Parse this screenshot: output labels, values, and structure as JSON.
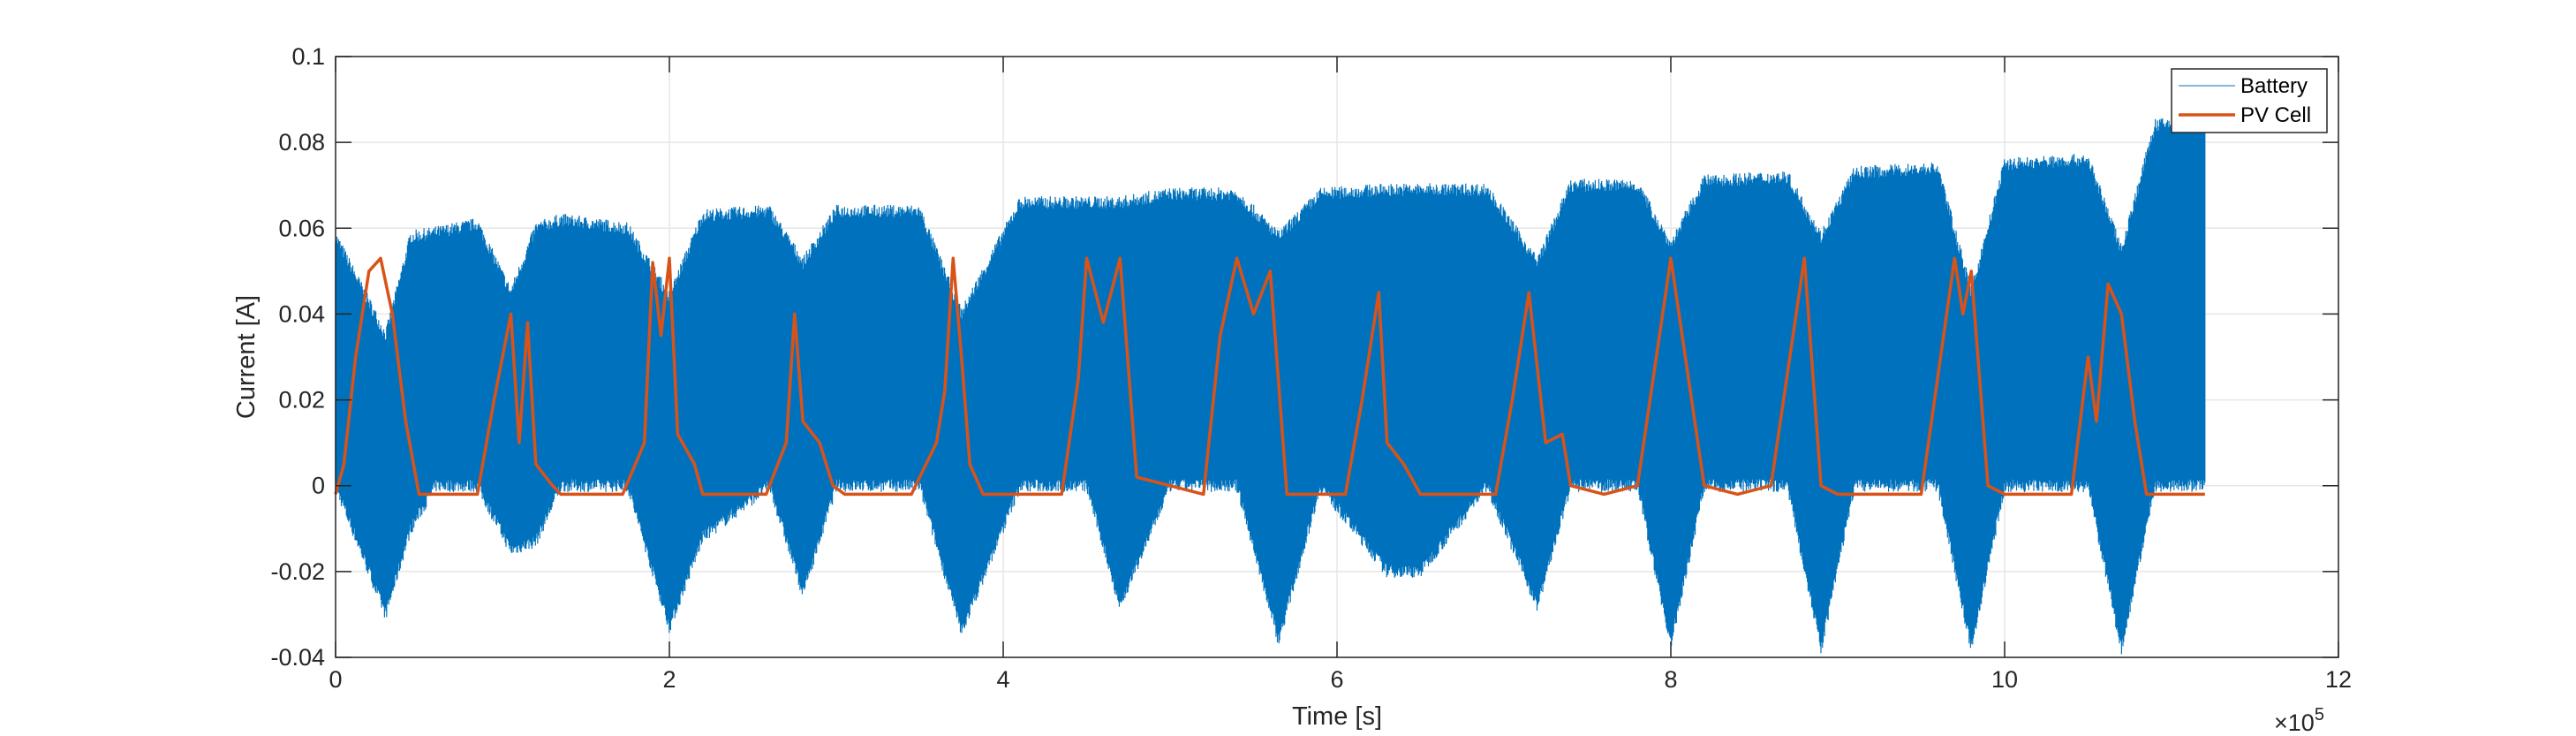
{
  "chart_data": {
    "type": "line",
    "title": "",
    "xlabel": "Time [s]",
    "ylabel": "Current [A]",
    "xlim": [
      0,
      12
    ],
    "ylim": [
      -0.04,
      0.1
    ],
    "x_multiplier_label": "×10",
    "x_multiplier_exponent": "5",
    "xticks": [
      0,
      2,
      4,
      6,
      8,
      10,
      12
    ],
    "xtick_labels": [
      "0",
      "2",
      "4",
      "6",
      "8",
      "10",
      "12"
    ],
    "yticks": [
      -0.04,
      -0.02,
      0,
      0.02,
      0.04,
      0.06,
      0.08,
      0.1
    ],
    "ytick_labels": [
      "-0.04",
      "-0.02",
      "0",
      "0.02",
      "0.04",
      "0.06",
      "0.08",
      "0.1"
    ],
    "grid": true,
    "legend_position": "top-right",
    "legend": [
      "Battery",
      "PV Cell"
    ],
    "colors": {
      "battery": "#0072BD",
      "pv": "#D95319",
      "grid": "#E6E6E6",
      "axis": "#262626"
    },
    "series": [
      {
        "name": "Battery",
        "description_type": "high-frequency oscillation envelope",
        "x": [
          0,
          0.3,
          0.45,
          0.6,
          0.85,
          1.05,
          1.2,
          1.35,
          1.75,
          2.0,
          2.2,
          2.6,
          2.8,
          3.0,
          3.5,
          3.75,
          4.1,
          4.5,
          4.7,
          5.0,
          5.4,
          5.65,
          5.9,
          6.3,
          6.5,
          6.9,
          7.2,
          7.4,
          7.8,
          8.0,
          8.2,
          8.7,
          8.9,
          9.1,
          9.6,
          9.8,
          10.0,
          10.5,
          10.7,
          10.9,
          11.2
        ],
        "upper": [
          0.058,
          0.035,
          0.058,
          0.059,
          0.061,
          0.045,
          0.06,
          0.062,
          0.06,
          0.044,
          0.063,
          0.064,
          0.052,
          0.064,
          0.064,
          0.04,
          0.066,
          0.066,
          0.066,
          0.068,
          0.068,
          0.058,
          0.068,
          0.069,
          0.069,
          0.069,
          0.052,
          0.07,
          0.07,
          0.056,
          0.071,
          0.072,
          0.058,
          0.073,
          0.074,
          0.045,
          0.075,
          0.076,
          0.055,
          0.084,
          0.085
        ],
        "lower": [
          0.0,
          -0.03,
          -0.01,
          0.0,
          0.0,
          -0.015,
          -0.013,
          0.0,
          0.0,
          -0.033,
          -0.012,
          0.0,
          -0.025,
          0.0,
          0.0,
          -0.034,
          0.0,
          0.0,
          -0.028,
          0.0,
          0.0,
          -0.036,
          0.0,
          -0.02,
          -0.02,
          0.0,
          -0.028,
          0.0,
          0.0,
          -0.037,
          0.0,
          0.0,
          -0.038,
          0.0,
          0.0,
          -0.038,
          0.0,
          0.0,
          -0.038,
          0.0,
          0.0
        ]
      },
      {
        "name": "PV Cell",
        "x": [
          0,
          0.05,
          0.12,
          0.2,
          0.27,
          0.34,
          0.42,
          0.5,
          0.85,
          0.95,
          1.05,
          1.1,
          1.15,
          1.2,
          1.3,
          1.35,
          1.72,
          1.85,
          1.9,
          1.95,
          2.0,
          2.05,
          2.15,
          2.2,
          2.58,
          2.7,
          2.75,
          2.8,
          2.9,
          2.98,
          3.05,
          3.45,
          3.6,
          3.65,
          3.7,
          3.75,
          3.8,
          3.88,
          4.35,
          4.45,
          4.5,
          4.6,
          4.7,
          4.8,
          5.2,
          5.3,
          5.4,
          5.5,
          5.6,
          5.7,
          6.05,
          6.15,
          6.25,
          6.3,
          6.4,
          6.5,
          6.95,
          7.05,
          7.15,
          7.25,
          7.35,
          7.4,
          7.6,
          7.8,
          8.0,
          8.2,
          8.4,
          8.6,
          8.8,
          8.9,
          9.0,
          9.2,
          9.5,
          9.7,
          9.75,
          9.8,
          9.9,
          10.0,
          10.4,
          10.5,
          10.55,
          10.62,
          10.7,
          10.78,
          10.85,
          11.2
        ],
        "y": [
          -0.002,
          0.005,
          0.03,
          0.05,
          0.053,
          0.04,
          0.015,
          -0.002,
          -0.002,
          0.02,
          0.04,
          0.01,
          0.038,
          0.005,
          0.0,
          -0.002,
          -0.002,
          0.01,
          0.052,
          0.035,
          0.053,
          0.012,
          0.005,
          -0.002,
          -0.002,
          0.01,
          0.04,
          0.015,
          0.01,
          0.0,
          -0.002,
          -0.002,
          0.01,
          0.022,
          0.053,
          0.03,
          0.005,
          -0.002,
          -0.002,
          0.025,
          0.053,
          0.038,
          0.053,
          0.002,
          -0.002,
          0.035,
          0.053,
          0.04,
          0.05,
          -0.002,
          -0.002,
          0.02,
          0.045,
          0.01,
          0.005,
          -0.002,
          -0.002,
          0.02,
          0.045,
          0.01,
          0.012,
          0.0,
          -0.002,
          0.0,
          0.053,
          0.0,
          -0.002,
          0.0,
          0.053,
          0.0,
          -0.002,
          -0.002,
          -0.002,
          0.053,
          0.04,
          0.05,
          0.0,
          -0.002,
          -0.002,
          0.03,
          0.015,
          0.047,
          0.04,
          0.015,
          -0.002,
          -0.002
        ]
      }
    ]
  }
}
